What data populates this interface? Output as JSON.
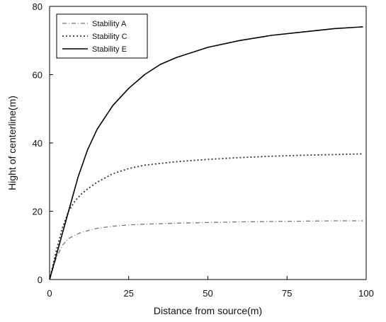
{
  "chart_data": {
    "type": "line",
    "title": "",
    "xlabel": "Distance from source(m)",
    "ylabel": "Hight of centerline(m)",
    "xlim": [
      0,
      100
    ],
    "ylim": [
      0,
      80
    ],
    "xticks": [
      0,
      25,
      50,
      75,
      100
    ],
    "yticks": [
      0,
      20,
      40,
      60,
      80
    ],
    "grid": false,
    "legend_position": "top-left",
    "series": [
      {
        "name": "Stability A",
        "style": "dash-dot",
        "color": "#777777",
        "x": [
          0,
          2,
          4,
          6,
          8,
          10,
          15,
          20,
          25,
          30,
          40,
          50,
          60,
          70,
          80,
          90,
          99
        ],
        "y": [
          0,
          6,
          10,
          12,
          13,
          13.8,
          15,
          15.6,
          16,
          16.2,
          16.5,
          16.7,
          16.9,
          17,
          17.1,
          17.2,
          17.2
        ]
      },
      {
        "name": "Stability C",
        "style": "dotted",
        "color": "#333333",
        "x": [
          0,
          2,
          4,
          6,
          8,
          10,
          12,
          15,
          20,
          25,
          30,
          40,
          50,
          60,
          70,
          80,
          90,
          99
        ],
        "y": [
          0,
          8,
          15,
          20,
          23,
          25,
          26.5,
          28.5,
          31,
          32.5,
          33.5,
          34.5,
          35.2,
          35.7,
          36.1,
          36.4,
          36.6,
          36.8
        ]
      },
      {
        "name": "Stability E",
        "style": "solid",
        "color": "#000000",
        "x": [
          0,
          3,
          6,
          9,
          12,
          15,
          20,
          25,
          30,
          35,
          40,
          50,
          60,
          70,
          80,
          90,
          99
        ],
        "y": [
          0,
          10,
          20,
          30,
          38,
          44,
          51,
          56,
          60,
          63,
          65,
          68,
          70,
          71.5,
          72.5,
          73.5,
          74
        ]
      }
    ]
  }
}
